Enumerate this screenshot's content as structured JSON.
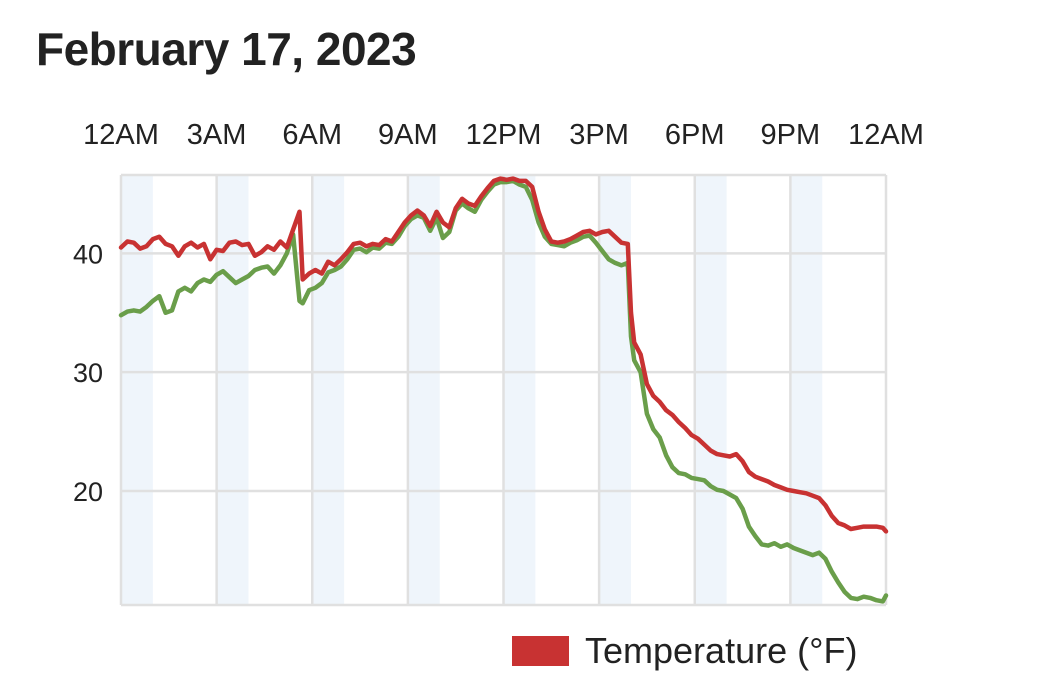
{
  "chart_data": {
    "type": "line",
    "title": "February 17, 2023",
    "x_tick_labels": [
      "12AM",
      "3AM",
      "6AM",
      "9AM",
      "12PM",
      "3PM",
      "6PM",
      "9PM",
      "12AM"
    ],
    "y_tick_labels": [
      "40",
      "30",
      "20"
    ],
    "y_ticks": [
      40,
      30,
      20
    ],
    "ylim": [
      10.4,
      46.6
    ],
    "xlim": [
      0,
      24
    ],
    "grid": true,
    "legend": {
      "position": "bottom-right",
      "entries": [
        "Temperature (°F)"
      ]
    },
    "series": [
      {
        "name": "Temperature (°F)",
        "color": "#c83232",
        "points": [
          [
            0,
            40.5
          ],
          [
            0.2,
            41
          ],
          [
            0.4,
            40.9
          ],
          [
            0.6,
            40.4
          ],
          [
            0.8,
            40.6
          ],
          [
            1,
            41.2
          ],
          [
            1.2,
            41.4
          ],
          [
            1.4,
            40.8
          ],
          [
            1.6,
            40.6
          ],
          [
            1.8,
            39.8
          ],
          [
            2,
            40.6
          ],
          [
            2.2,
            40.9
          ],
          [
            2.4,
            40.5
          ],
          [
            2.6,
            40.8
          ],
          [
            2.8,
            39.5
          ],
          [
            3,
            40.3
          ],
          [
            3.2,
            40.2
          ],
          [
            3.4,
            40.9
          ],
          [
            3.6,
            41.0
          ],
          [
            3.8,
            40.7
          ],
          [
            4,
            40.8
          ],
          [
            4.2,
            39.8
          ],
          [
            4.4,
            40.1
          ],
          [
            4.6,
            40.6
          ],
          [
            4.8,
            40.3
          ],
          [
            5,
            41.0
          ],
          [
            5.2,
            40.5
          ],
          [
            5.4,
            42.0
          ],
          [
            5.6,
            43.5
          ],
          [
            5.7,
            37.8
          ],
          [
            5.9,
            38.3
          ],
          [
            6.1,
            38.6
          ],
          [
            6.3,
            38.3
          ],
          [
            6.5,
            39.3
          ],
          [
            6.7,
            39.0
          ],
          [
            6.9,
            39.5
          ],
          [
            7.1,
            40.1
          ],
          [
            7.3,
            40.8
          ],
          [
            7.5,
            40.9
          ],
          [
            7.7,
            40.6
          ],
          [
            7.9,
            40.8
          ],
          [
            8.1,
            40.7
          ],
          [
            8.3,
            41.2
          ],
          [
            8.5,
            41.0
          ],
          [
            8.7,
            41.8
          ],
          [
            8.9,
            42.6
          ],
          [
            9.1,
            43.2
          ],
          [
            9.3,
            43.6
          ],
          [
            9.5,
            43.2
          ],
          [
            9.7,
            42.3
          ],
          [
            9.9,
            43.5
          ],
          [
            10.1,
            42.6
          ],
          [
            10.3,
            42.2
          ],
          [
            10.5,
            43.8
          ],
          [
            10.7,
            44.6
          ],
          [
            10.9,
            44.2
          ],
          [
            11.1,
            44.0
          ],
          [
            11.3,
            44.8
          ],
          [
            11.5,
            45.5
          ],
          [
            11.7,
            46.1
          ],
          [
            11.9,
            46.3
          ],
          [
            12.1,
            46.2
          ],
          [
            12.3,
            46.3
          ],
          [
            12.5,
            46.1
          ],
          [
            12.7,
            46.1
          ],
          [
            12.9,
            45.6
          ],
          [
            13.1,
            43.5
          ],
          [
            13.3,
            42.0
          ],
          [
            13.5,
            41.0
          ],
          [
            13.7,
            40.9
          ],
          [
            13.9,
            41.0
          ],
          [
            14.1,
            41.2
          ],
          [
            14.3,
            41.5
          ],
          [
            14.5,
            41.8
          ],
          [
            14.7,
            41.9
          ],
          [
            14.9,
            41.6
          ],
          [
            15.1,
            41.8
          ],
          [
            15.3,
            41.9
          ],
          [
            15.5,
            41.4
          ],
          [
            15.7,
            40.9
          ],
          [
            15.9,
            40.8
          ],
          [
            16.0,
            35.0
          ],
          [
            16.1,
            32.5
          ],
          [
            16.3,
            31.5
          ],
          [
            16.5,
            29.0
          ],
          [
            16.7,
            28.0
          ],
          [
            16.9,
            27.5
          ],
          [
            17.1,
            26.8
          ],
          [
            17.3,
            26.4
          ],
          [
            17.5,
            25.8
          ],
          [
            17.7,
            25.3
          ],
          [
            17.9,
            24.7
          ],
          [
            18.1,
            24.4
          ],
          [
            18.3,
            23.9
          ],
          [
            18.5,
            23.4
          ],
          [
            18.7,
            23.1
          ],
          [
            18.9,
            23.0
          ],
          [
            19.1,
            22.9
          ],
          [
            19.3,
            23.1
          ],
          [
            19.5,
            22.5
          ],
          [
            19.7,
            21.6
          ],
          [
            19.9,
            21.2
          ],
          [
            20.1,
            21.0
          ],
          [
            20.3,
            20.8
          ],
          [
            20.5,
            20.5
          ],
          [
            20.7,
            20.3
          ],
          [
            20.9,
            20.1
          ],
          [
            21.1,
            20.0
          ],
          [
            21.3,
            19.9
          ],
          [
            21.5,
            19.8
          ],
          [
            21.7,
            19.6
          ],
          [
            21.9,
            19.4
          ],
          [
            22.1,
            18.8
          ],
          [
            22.3,
            17.9
          ],
          [
            22.5,
            17.3
          ],
          [
            22.7,
            17.1
          ],
          [
            22.9,
            16.8
          ],
          [
            23.1,
            16.9
          ],
          [
            23.3,
            17.0
          ],
          [
            23.5,
            17.0
          ],
          [
            23.7,
            17.0
          ],
          [
            23.9,
            16.9
          ],
          [
            24,
            16.6
          ]
        ]
      },
      {
        "name": "",
        "color": "#6a9e4a",
        "points": [
          [
            0,
            34.8
          ],
          [
            0.2,
            35.1
          ],
          [
            0.4,
            35.2
          ],
          [
            0.6,
            35.1
          ],
          [
            0.8,
            35.5
          ],
          [
            1,
            36.0
          ],
          [
            1.2,
            36.4
          ],
          [
            1.4,
            35.0
          ],
          [
            1.6,
            35.2
          ],
          [
            1.8,
            36.8
          ],
          [
            2,
            37.1
          ],
          [
            2.2,
            36.8
          ],
          [
            2.4,
            37.5
          ],
          [
            2.6,
            37.8
          ],
          [
            2.8,
            37.6
          ],
          [
            3,
            38.2
          ],
          [
            3.2,
            38.5
          ],
          [
            3.4,
            38.0
          ],
          [
            3.6,
            37.5
          ],
          [
            3.8,
            37.8
          ],
          [
            4,
            38.1
          ],
          [
            4.2,
            38.6
          ],
          [
            4.4,
            38.8
          ],
          [
            4.6,
            38.9
          ],
          [
            4.8,
            38.3
          ],
          [
            5,
            39.0
          ],
          [
            5.2,
            40.0
          ],
          [
            5.4,
            41.6
          ],
          [
            5.6,
            36.0
          ],
          [
            5.7,
            35.8
          ],
          [
            5.9,
            36.9
          ],
          [
            6.1,
            37.1
          ],
          [
            6.3,
            37.5
          ],
          [
            6.5,
            38.4
          ],
          [
            6.7,
            38.6
          ],
          [
            6.9,
            38.9
          ],
          [
            7.1,
            39.5
          ],
          [
            7.3,
            40.3
          ],
          [
            7.5,
            40.4
          ],
          [
            7.7,
            40.1
          ],
          [
            7.9,
            40.5
          ],
          [
            8.1,
            40.4
          ],
          [
            8.3,
            40.9
          ],
          [
            8.5,
            40.8
          ],
          [
            8.7,
            41.4
          ],
          [
            8.9,
            42.3
          ],
          [
            9.1,
            42.9
          ],
          [
            9.3,
            43.2
          ],
          [
            9.5,
            43.0
          ],
          [
            9.7,
            41.9
          ],
          [
            9.9,
            43.0
          ],
          [
            10.1,
            41.3
          ],
          [
            10.3,
            41.8
          ],
          [
            10.5,
            43.6
          ],
          [
            10.7,
            44.2
          ],
          [
            10.9,
            43.8
          ],
          [
            11.1,
            43.5
          ],
          [
            11.3,
            44.5
          ],
          [
            11.5,
            45.2
          ],
          [
            11.7,
            45.8
          ],
          [
            11.9,
            46.0
          ],
          [
            12.1,
            46.0
          ],
          [
            12.3,
            46.1
          ],
          [
            12.5,
            45.8
          ],
          [
            12.7,
            45.6
          ],
          [
            12.9,
            44.5
          ],
          [
            13.1,
            42.6
          ],
          [
            13.3,
            41.4
          ],
          [
            13.5,
            40.8
          ],
          [
            13.7,
            40.7
          ],
          [
            13.9,
            40.6
          ],
          [
            14.1,
            40.9
          ],
          [
            14.3,
            41.1
          ],
          [
            14.5,
            41.4
          ],
          [
            14.7,
            41.5
          ],
          [
            14.9,
            40.9
          ],
          [
            15.1,
            40.2
          ],
          [
            15.3,
            39.5
          ],
          [
            15.5,
            39.2
          ],
          [
            15.7,
            39.0
          ],
          [
            15.9,
            39.2
          ],
          [
            16.0,
            33.0
          ],
          [
            16.1,
            31.0
          ],
          [
            16.3,
            30.0
          ],
          [
            16.5,
            26.5
          ],
          [
            16.7,
            25.2
          ],
          [
            16.9,
            24.5
          ],
          [
            17.1,
            23.0
          ],
          [
            17.3,
            22.0
          ],
          [
            17.5,
            21.5
          ],
          [
            17.7,
            21.4
          ],
          [
            17.9,
            21.1
          ],
          [
            18.1,
            21.0
          ],
          [
            18.3,
            20.9
          ],
          [
            18.5,
            20.4
          ],
          [
            18.7,
            20.1
          ],
          [
            18.9,
            20.0
          ],
          [
            19.1,
            19.7
          ],
          [
            19.3,
            19.4
          ],
          [
            19.5,
            18.5
          ],
          [
            19.7,
            17.0
          ],
          [
            19.9,
            16.2
          ],
          [
            20.1,
            15.5
          ],
          [
            20.3,
            15.4
          ],
          [
            20.5,
            15.6
          ],
          [
            20.7,
            15.3
          ],
          [
            20.9,
            15.5
          ],
          [
            21.1,
            15.2
          ],
          [
            21.3,
            15.0
          ],
          [
            21.5,
            14.8
          ],
          [
            21.7,
            14.6
          ],
          [
            21.9,
            14.8
          ],
          [
            22.1,
            14.3
          ],
          [
            22.3,
            13.2
          ],
          [
            22.5,
            12.3
          ],
          [
            22.7,
            11.5
          ],
          [
            22.9,
            11.0
          ],
          [
            23.1,
            10.9
          ],
          [
            23.3,
            11.1
          ],
          [
            23.5,
            11.0
          ],
          [
            23.7,
            10.8
          ],
          [
            23.9,
            10.7
          ],
          [
            24,
            11.2
          ]
        ]
      }
    ]
  },
  "colors": {
    "band": "#eff5fb",
    "grid": "#e0e0e0",
    "temperature": "#c83232",
    "dewpoint": "#6a9e4a"
  }
}
